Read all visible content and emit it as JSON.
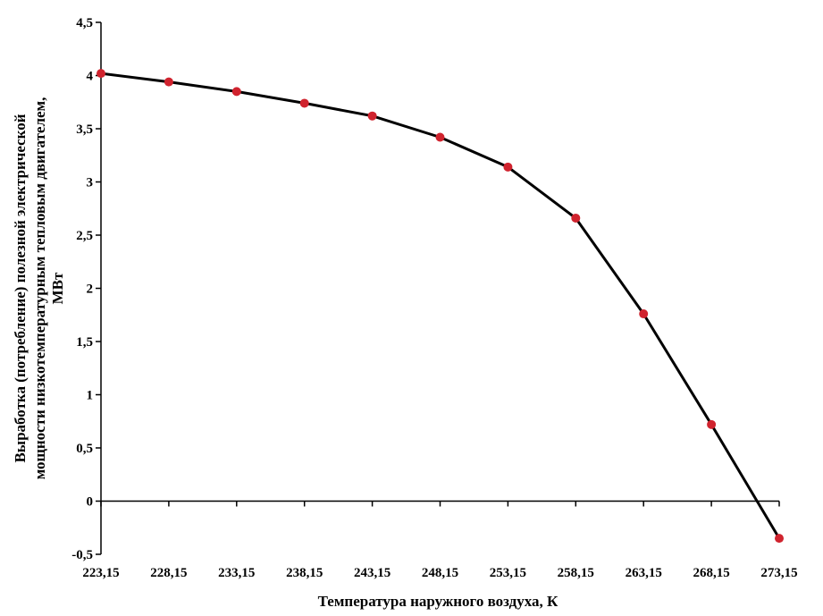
{
  "chart_data": {
    "type": "line",
    "title": "",
    "xlabel": "Температура наружного воздуха, К",
    "ylabel_lines": [
      "Выработка (потребление) полезной электрической",
      "мощности низкотемпературным тепловым двигателем,",
      "МВт"
    ],
    "x": [
      223.15,
      228.15,
      233.15,
      238.15,
      243.15,
      248.15,
      253.15,
      258.15,
      263.15,
      268.15,
      273.15
    ],
    "x_tick_labels": [
      "223,15",
      "228,15",
      "233,15",
      "238,15",
      "243,15",
      "248,15",
      "253,15",
      "258,15",
      "263,15",
      "268,15",
      "273,15"
    ],
    "y_ticks": [
      -0.5,
      0,
      0.5,
      1,
      1.5,
      2,
      2.5,
      3,
      3.5,
      4,
      4.5
    ],
    "y_tick_labels": [
      "-0,5",
      "0",
      "0,5",
      "1",
      "1,5",
      "2",
      "2,5",
      "3",
      "3,5",
      "4",
      "4,5"
    ],
    "ylim": [
      -0.5,
      4.5
    ],
    "xlim": [
      223.15,
      273.15
    ],
    "series": [
      {
        "values": [
          4.02,
          3.94,
          3.85,
          3.74,
          3.62,
          3.42,
          3.14,
          2.66,
          1.76,
          0.72,
          -0.35
        ],
        "line_color": "#000000",
        "marker_color": "#d0232e"
      }
    ],
    "grid": false,
    "legend": "none"
  }
}
